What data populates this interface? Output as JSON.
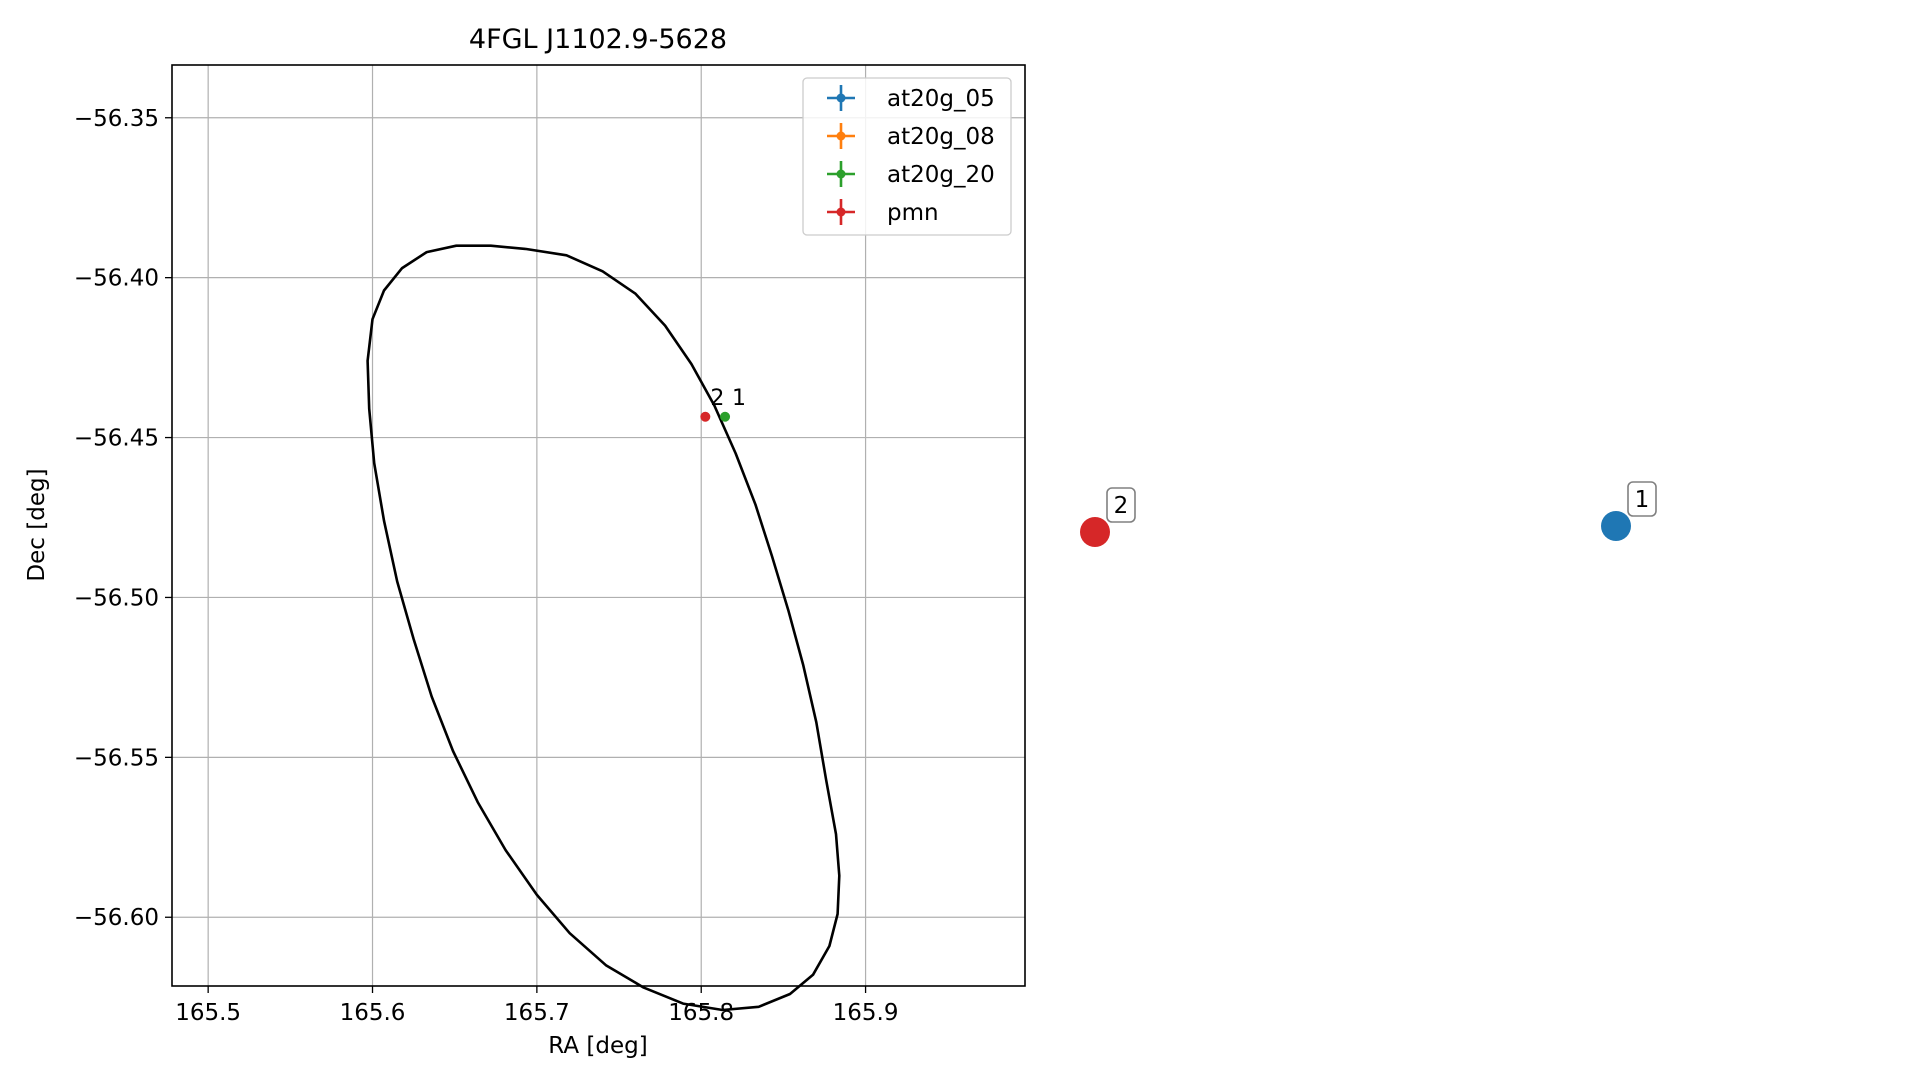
{
  "chart_data": {
    "type": "scatter",
    "title": "4FGL J1102.9-5628",
    "xlabel": "RA [deg]",
    "ylabel": "Dec [deg]",
    "xlim": [
      165.478,
      165.997
    ],
    "ylim": [
      -56.6215,
      -56.3335
    ],
    "x_ticks": [
      165.5,
      165.6,
      165.7,
      165.8,
      165.9
    ],
    "x_tick_labels": [
      "165.5",
      "165.6",
      "165.7",
      "165.8",
      "165.9"
    ],
    "y_ticks": [
      -56.35,
      -56.4,
      -56.45,
      -56.5,
      -56.55,
      -56.6
    ],
    "y_tick_labels": [
      "−56.35",
      "−56.40",
      "−56.45",
      "−56.50",
      "−56.55",
      "−56.60"
    ],
    "grid": true,
    "legend_position": "top-right",
    "legend": [
      {
        "label": "at20g_05",
        "color": "#1f77b4"
      },
      {
        "label": "at20g_08",
        "color": "#ff7f0e"
      },
      {
        "label": "at20g_20",
        "color": "#2ca02c"
      },
      {
        "label": "pmn",
        "color": "#d62728"
      }
    ],
    "ellipse": {
      "color": "#000000",
      "points": [
        [
          165.693,
          -56.391
        ],
        [
          165.718,
          -56.393
        ],
        [
          165.74,
          -56.398
        ],
        [
          165.76,
          -56.405
        ],
        [
          165.778,
          -56.415
        ],
        [
          165.794,
          -56.427
        ],
        [
          165.808,
          -56.44
        ],
        [
          165.821,
          -56.455
        ],
        [
          165.833,
          -56.471
        ],
        [
          165.843,
          -56.487
        ],
        [
          165.853,
          -56.504
        ],
        [
          165.862,
          -56.521
        ],
        [
          165.87,
          -56.539
        ],
        [
          165.876,
          -56.557
        ],
        [
          165.882,
          -56.574
        ],
        [
          165.884,
          -56.587
        ],
        [
          165.883,
          -56.599
        ],
        [
          165.878,
          -56.609
        ],
        [
          165.868,
          -56.618
        ],
        [
          165.854,
          -56.624
        ],
        [
          165.835,
          -56.628
        ],
        [
          165.813,
          -56.629
        ],
        [
          165.789,
          -56.627
        ],
        [
          165.765,
          -56.622
        ],
        [
          165.742,
          -56.615
        ],
        [
          165.72,
          -56.605
        ],
        [
          165.7,
          -56.593
        ],
        [
          165.681,
          -56.579
        ],
        [
          165.664,
          -56.564
        ],
        [
          165.649,
          -56.548
        ],
        [
          165.636,
          -56.531
        ],
        [
          165.625,
          -56.513
        ],
        [
          165.615,
          -56.495
        ],
        [
          165.607,
          -56.476
        ],
        [
          165.601,
          -56.458
        ],
        [
          165.598,
          -56.441
        ],
        [
          165.597,
          -56.426
        ],
        [
          165.6,
          -56.413
        ],
        [
          165.607,
          -56.404
        ],
        [
          165.618,
          -56.397
        ],
        [
          165.633,
          -56.392
        ],
        [
          165.651,
          -56.39
        ],
        [
          165.672,
          -56.39
        ],
        [
          165.693,
          -56.391
        ]
      ]
    },
    "points": [
      {
        "series": "at20g_20",
        "ra": 165.8145,
        "dec": -56.4435,
        "color": "#2ca02c",
        "label": "1"
      },
      {
        "series": "pmn",
        "ra": 165.8025,
        "dec": -56.4435,
        "color": "#d62728",
        "label": "2"
      }
    ],
    "off_axes_markers": [
      {
        "label": "2",
        "color": "#d62728"
      },
      {
        "label": "1",
        "color": "#1f77b4"
      }
    ]
  }
}
